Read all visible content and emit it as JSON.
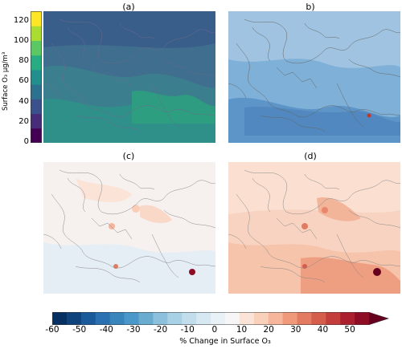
{
  "panels": [
    {
      "id": "a",
      "title": "(a)"
    },
    {
      "id": "b",
      "title": "b)"
    },
    {
      "id": "c",
      "title": "(c)"
    },
    {
      "id": "d",
      "title": "(d)"
    }
  ],
  "colors": {
    "ozone_base": "#3f6e8e",
    "b_base": "#9fc3e0",
    "c_base": "#f6f1ee",
    "d_base": "#f9d3c1"
  },
  "chart_data": [
    {
      "type": "heatmap",
      "panel": "(a)",
      "title": "(a)",
      "colorbar": {
        "label": "Surface O₃ μg/m³",
        "ticks": [
          "0",
          "20",
          "40",
          "60",
          "80",
          "100",
          "120"
        ],
        "range": [
          0,
          130
        ],
        "colors": [
          "#440154",
          "#472c7a",
          "#3b518b",
          "#2c718e",
          "#21908d",
          "#27ad81",
          "#5cc863",
          "#aadc32",
          "#fde725"
        ]
      }
    },
    {
      "type": "heatmap",
      "panel": "b)",
      "title": "b)"
    },
    {
      "type": "heatmap",
      "panel": "(c)",
      "title": "(c)"
    },
    {
      "type": "heatmap",
      "panel": "(d)",
      "title": "(d)",
      "colorbar": {
        "label": "% Change in Surface O₃",
        "ticks": [
          "-60",
          "-50",
          "-40",
          "-30",
          "-20",
          "-10",
          "0",
          "10",
          "20",
          "30",
          "40",
          "50"
        ],
        "range": [
          -60,
          60
        ],
        "colors": [
          "#053061",
          "#0f437b",
          "#1b5a9a",
          "#2a71b2",
          "#3885bc",
          "#4a98c9",
          "#6aacd0",
          "#8cc0dd",
          "#a8d1e6",
          "#c2ddec",
          "#d6e8f1",
          "#e8f1f6",
          "#f6f6f6",
          "#fbe4d7",
          "#f9d1bb",
          "#f6b69b",
          "#f09a7b",
          "#e27b62",
          "#d55d4c",
          "#c23d3b",
          "#ac1f2f",
          "#8e0d25",
          "#67001f"
        ]
      }
    }
  ]
}
